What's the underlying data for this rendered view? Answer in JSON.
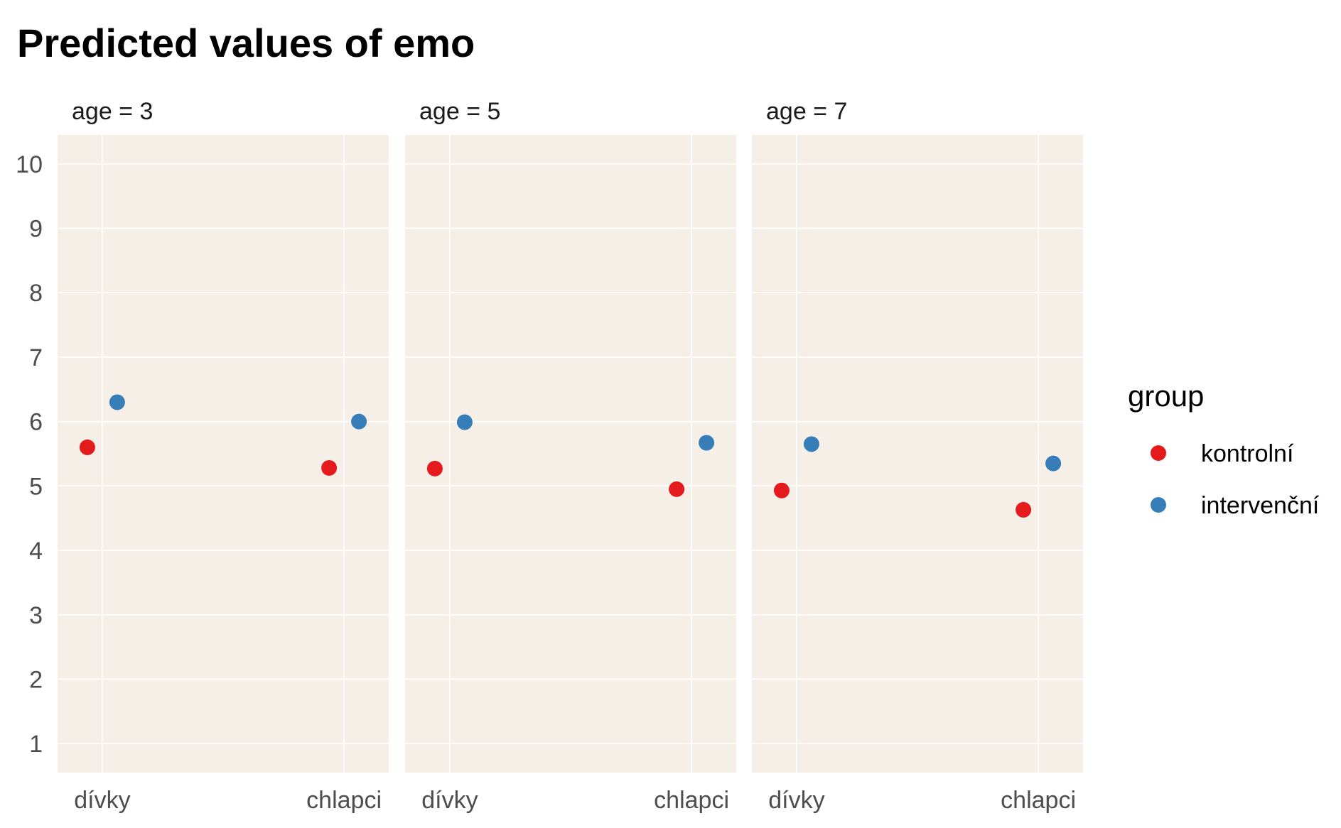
{
  "chart_data": {
    "type": "scatter",
    "title": "Predicted values of emo",
    "xlabel": "",
    "ylabel": "",
    "categories": [
      "dívky",
      "chlapci"
    ],
    "ylim": [
      0.55,
      10.45
    ],
    "yticks": [
      "1",
      "2",
      "3",
      "4",
      "5",
      "6",
      "7",
      "8",
      "9",
      "10"
    ],
    "grid": true,
    "legend": {
      "title": "group",
      "placement": "right",
      "entries": [
        {
          "label": "kontrolní",
          "color": "#E41A1C"
        },
        {
          "label": "intervenční",
          "color": "#377EB8"
        }
      ]
    },
    "facets": [
      {
        "label": "age = 3",
        "series": [
          {
            "name": "kontrolní",
            "values": [
              5.6,
              5.28
            ]
          },
          {
            "name": "intervenční",
            "values": [
              6.3,
              6.0
            ]
          }
        ]
      },
      {
        "label": "age = 5",
        "series": [
          {
            "name": "kontrolní",
            "values": [
              5.27,
              4.95
            ]
          },
          {
            "name": "intervenční",
            "values": [
              5.99,
              5.67
            ]
          }
        ]
      },
      {
        "label": "age = 7",
        "series": [
          {
            "name": "kontrolní",
            "values": [
              4.93,
              4.63
            ]
          },
          {
            "name": "intervenční",
            "values": [
              5.65,
              5.35
            ]
          }
        ]
      }
    ]
  },
  "colors": {
    "panel_background": "#F5EFE8",
    "grid": "#FFFFFF"
  }
}
